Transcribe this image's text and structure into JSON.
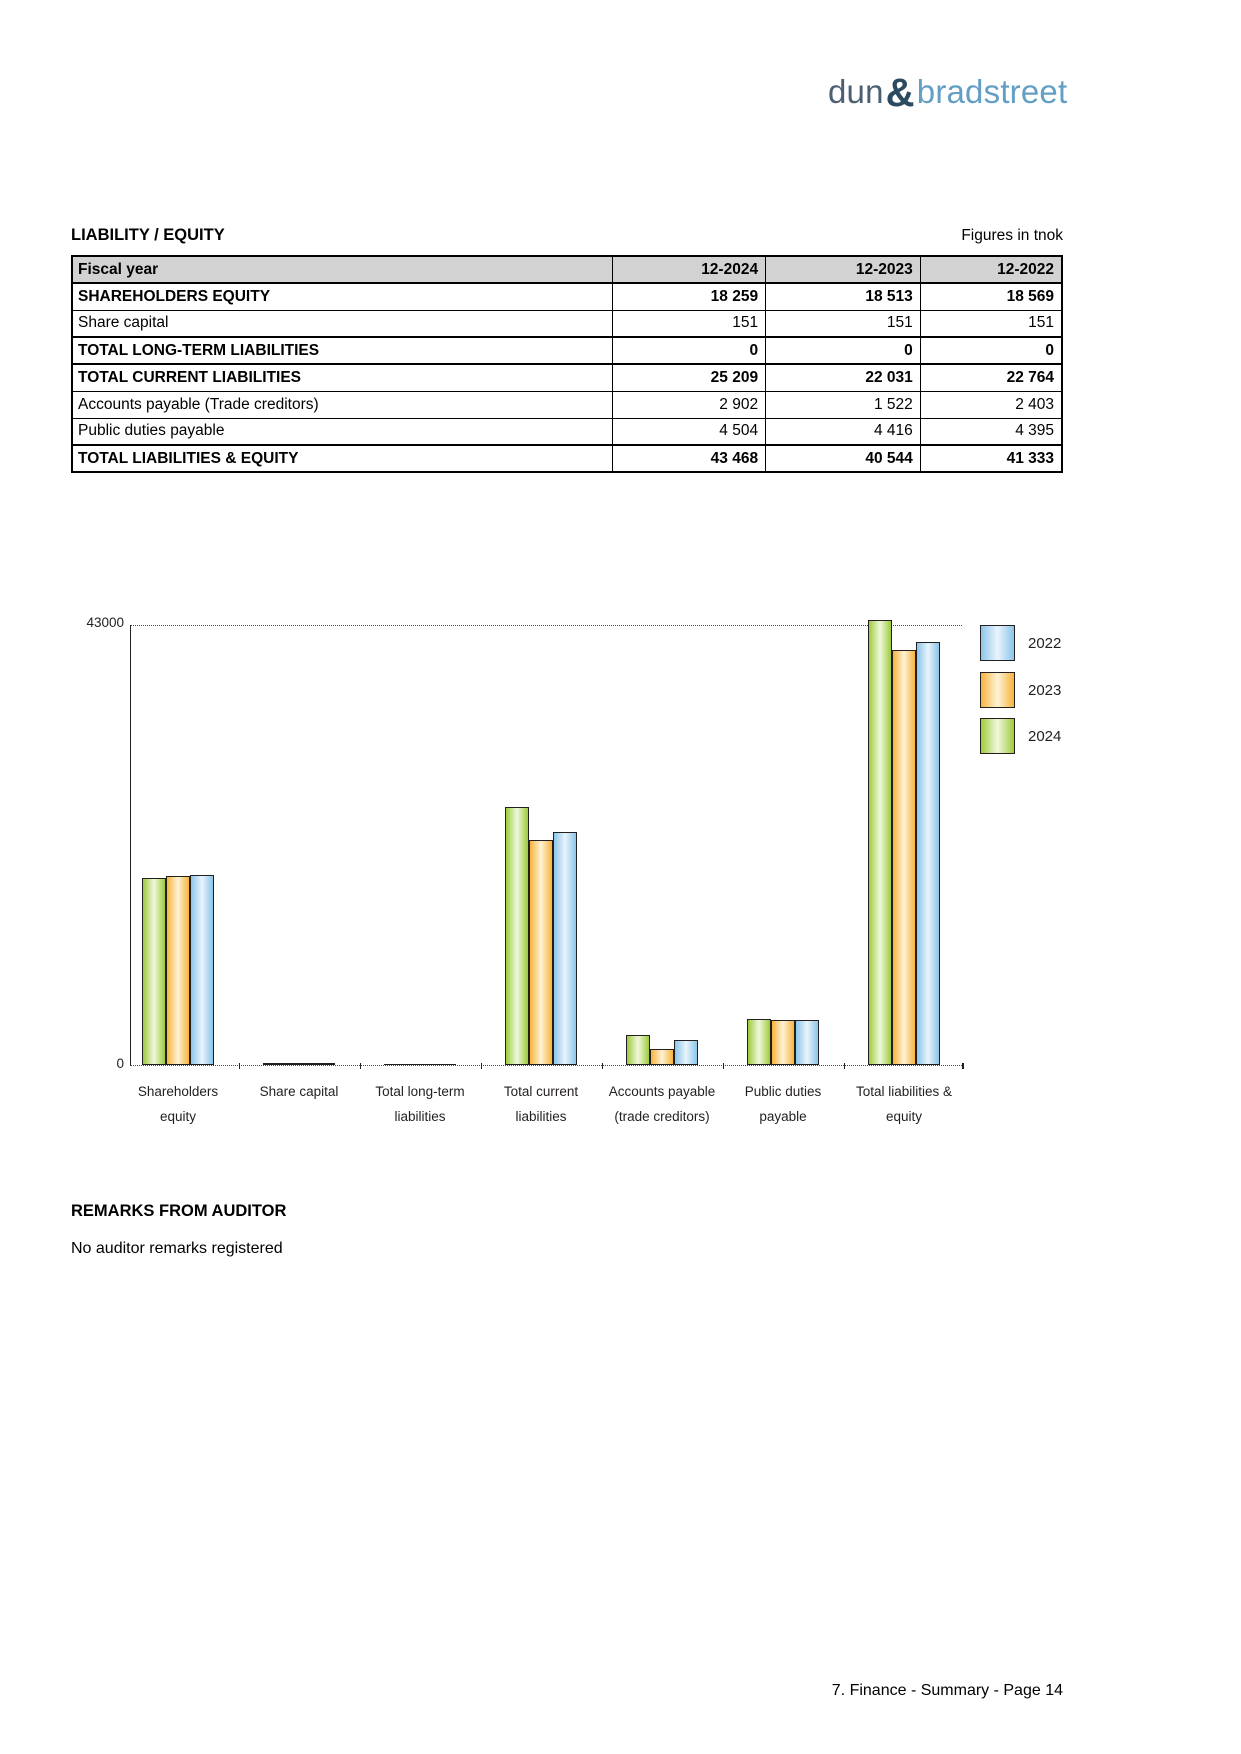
{
  "logo": {
    "word1": "dun",
    "ampersand": "&",
    "word2": "bradstreet"
  },
  "page": {
    "title": "LIABILITY / EQUITY",
    "units_note": "Figures in tnok",
    "footer": "7. Finance - Summary - Page 14"
  },
  "table": {
    "header": {
      "label": "Fiscal year",
      "cols": [
        "12-2024",
        "12-2023",
        "12-2022"
      ]
    },
    "rows": [
      {
        "label": "SHAREHOLDERS EQUITY",
        "values": [
          "18 259",
          "18 513",
          "18 569"
        ],
        "section": true
      },
      {
        "label": "Share capital",
        "values": [
          "151",
          "151",
          "151"
        ],
        "section": false
      },
      {
        "label": "TOTAL LONG-TERM LIABILITIES",
        "values": [
          "0",
          "0",
          "0"
        ],
        "section": true
      },
      {
        "label": "TOTAL CURRENT LIABILITIES",
        "values": [
          "25 209",
          "22 031",
          "22 764"
        ],
        "section": true
      },
      {
        "label": "Accounts payable (Trade creditors)",
        "values": [
          "2 902",
          "1 522",
          "2 403"
        ],
        "section": false
      },
      {
        "label": "Public duties payable",
        "values": [
          "4 504",
          "4 416",
          "4 395"
        ],
        "section": false
      },
      {
        "label": "TOTAL LIABILITIES & EQUITY",
        "values": [
          "43 468",
          "40 544",
          "41 333"
        ],
        "section": true
      }
    ]
  },
  "remarks": {
    "heading": "REMARKS FROM AUDITOR",
    "text": "No auditor remarks registered"
  },
  "chart_data": {
    "type": "bar",
    "title": "",
    "xlabel": "",
    "ylabel": "",
    "units": "tnok",
    "categories": [
      "Shareholders equity",
      "Share capital",
      "Total long-term liabilities",
      "Total current liabilities",
      "Accounts payable (trade creditors)",
      "Public duties payable",
      "Total liabilities & equity"
    ],
    "category_label_lines": [
      [
        "Shareholders",
        "equity"
      ],
      [
        "Share capital"
      ],
      [
        "Total long-term",
        "liabilities"
      ],
      [
        "Total current",
        "liabilities"
      ],
      [
        "Accounts payable",
        "(trade creditors)"
      ],
      [
        "Public duties",
        "payable"
      ],
      [
        "Total liabilities &",
        "equity"
      ]
    ],
    "series": [
      {
        "name": "2024",
        "color_key": "green",
        "values": [
          18259,
          151,
          0,
          25209,
          2902,
          4504,
          43468
        ]
      },
      {
        "name": "2023",
        "color_key": "orange",
        "values": [
          18513,
          151,
          0,
          22031,
          1522,
          4416,
          40544
        ]
      },
      {
        "name": "2022",
        "color_key": "blue",
        "values": [
          18569,
          151,
          0,
          22764,
          2403,
          4395,
          41333
        ]
      }
    ],
    "legend_order_top_to_bottom": [
      "2022",
      "2023",
      "2024"
    ],
    "legend_position": "top-right",
    "ylim": [
      0,
      43000
    ],
    "ytick_labels": [
      "0",
      "43000"
    ],
    "gridline_value": 43000,
    "grid_style": "dotted"
  },
  "colors": {
    "green_edge": "#9ecb3b",
    "green_mid": "#f0f8dd",
    "orange_edge": "#f7b33c",
    "orange_mid": "#fdf3d6",
    "blue_edge": "#8cc5ea",
    "blue_mid": "#e9f4fc",
    "bar_border": "#231f20",
    "table_header_bg": "#d2d2d2",
    "logo_word1": "#4c5f71",
    "logo_ampersand": "#2c4a60",
    "logo_word2": "#639fc5"
  }
}
